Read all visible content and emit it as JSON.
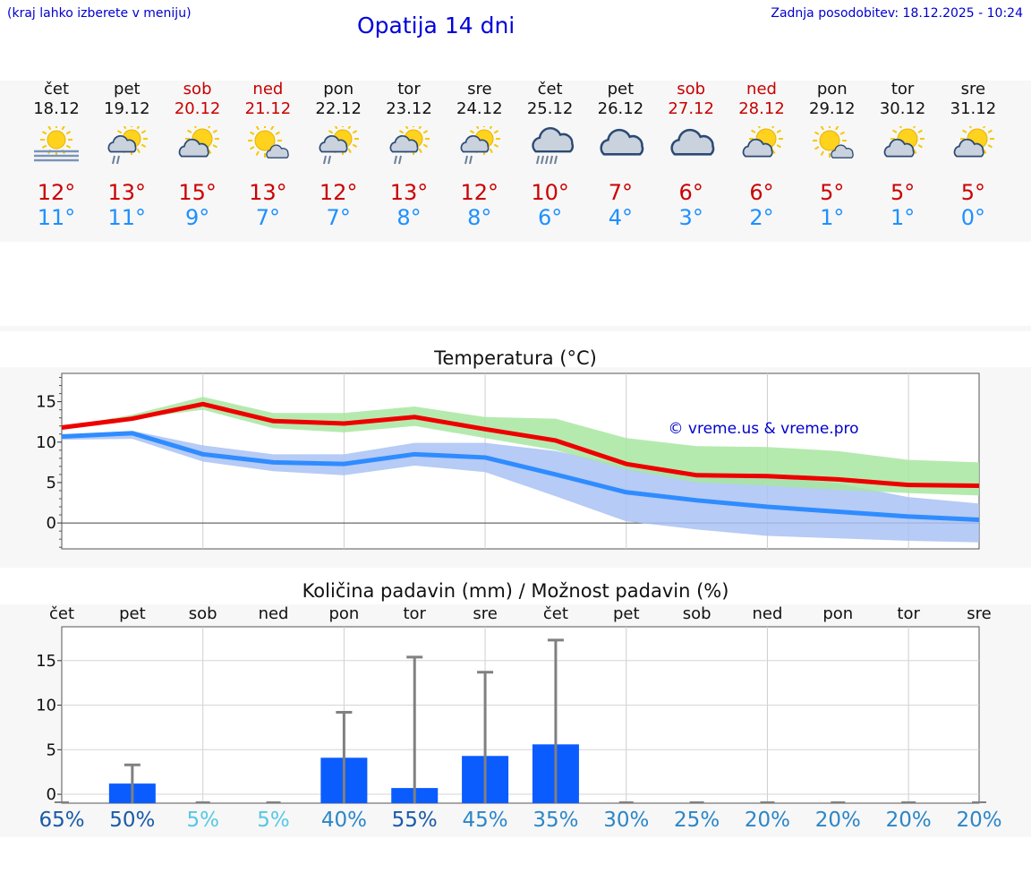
{
  "header": {
    "left_note": "(kraj lahko izberete v meniju)",
    "title": "Opatija 14 dni",
    "updated": "Zadnja posodobitev: 18.12.2025 - 10:24"
  },
  "colors": {
    "max": "#ee0000",
    "min": "#2f8cff",
    "max_band": "#a8e6a1",
    "min_band": "#a9c2f3",
    "bar": "#0a5cff",
    "weekday_text": "#111111",
    "weekend_text": "#c80000"
  },
  "days": [
    {
      "name": "čet",
      "date": "18.12",
      "weekend": false,
      "icon": "sun-fog-icon",
      "max": "12°",
      "min": "11°"
    },
    {
      "name": "pet",
      "date": "19.12",
      "weekend": false,
      "icon": "sun-cloud-rain-icon",
      "max": "13°",
      "min": "11°"
    },
    {
      "name": "sob",
      "date": "20.12",
      "weekend": true,
      "icon": "sun-cloud-icon",
      "max": "15°",
      "min": "9°"
    },
    {
      "name": "ned",
      "date": "21.12",
      "weekend": true,
      "icon": "sun-small-cloud-icon",
      "max": "13°",
      "min": "7°"
    },
    {
      "name": "pon",
      "date": "22.12",
      "weekend": false,
      "icon": "sun-cloud-rain-icon",
      "max": "12°",
      "min": "7°"
    },
    {
      "name": "tor",
      "date": "23.12",
      "weekend": false,
      "icon": "sun-cloud-rain-icon",
      "max": "13°",
      "min": "8°"
    },
    {
      "name": "sre",
      "date": "24.12",
      "weekend": false,
      "icon": "sun-cloud-rain-icon",
      "max": "12°",
      "min": "8°"
    },
    {
      "name": "čet",
      "date": "25.12",
      "weekend": false,
      "icon": "cloud-heavy-rain-icon",
      "max": "10°",
      "min": "6°"
    },
    {
      "name": "pet",
      "date": "26.12",
      "weekend": false,
      "icon": "cloud-icon",
      "max": "7°",
      "min": "4°"
    },
    {
      "name": "sob",
      "date": "27.12",
      "weekend": true,
      "icon": "cloud-icon",
      "max": "6°",
      "min": "3°"
    },
    {
      "name": "ned",
      "date": "28.12",
      "weekend": true,
      "icon": "sun-cloud-icon",
      "max": "6°",
      "min": "2°"
    },
    {
      "name": "pon",
      "date": "29.12",
      "weekend": false,
      "icon": "sun-small-cloud-icon",
      "max": "5°",
      "min": "1°"
    },
    {
      "name": "tor",
      "date": "30.12",
      "weekend": false,
      "icon": "sun-cloud-icon",
      "max": "5°",
      "min": "1°"
    },
    {
      "name": "sre",
      "date": "31.12",
      "weekend": false,
      "icon": "sun-cloud-icon",
      "max": "5°",
      "min": "0°"
    }
  ],
  "chart_data": [
    {
      "type": "line",
      "title": "Temperatura (°C)",
      "watermark": "© vreme.us & vreme.pro",
      "x": [
        0,
        1,
        2,
        3,
        4,
        5,
        6,
        7,
        8,
        9,
        10,
        11,
        12,
        13
      ],
      "ylim": [
        -3.2,
        18.5
      ],
      "yticks": [
        "0",
        "5",
        "10",
        "15"
      ],
      "ytick_values": [
        0,
        5,
        10,
        15
      ],
      "series": [
        {
          "name": "max",
          "values": [
            11.8,
            12.9,
            14.7,
            12.6,
            12.3,
            13.1,
            11.6,
            10.2,
            7.3,
            5.9,
            5.8,
            5.4,
            4.7,
            4.6
          ],
          "band_low": [
            11.8,
            12.9,
            14.0,
            11.7,
            11.2,
            12.0,
            10.5,
            9.0,
            6.6,
            5.0,
            4.6,
            4.1,
            3.7,
            3.4
          ],
          "band_high": [
            11.8,
            13.4,
            15.6,
            13.6,
            13.6,
            14.4,
            13.1,
            12.9,
            10.5,
            9.5,
            9.4,
            8.9,
            7.8,
            7.5
          ]
        },
        {
          "name": "min",
          "values": [
            10.7,
            11.1,
            8.5,
            7.5,
            7.3,
            8.5,
            8.1,
            6.0,
            3.8,
            2.8,
            2.0,
            1.4,
            0.8,
            0.4
          ],
          "band_low": [
            10.3,
            10.4,
            7.6,
            6.4,
            5.9,
            7.1,
            6.3,
            3.3,
            0.2,
            -0.8,
            -1.6,
            -1.9,
            -2.2,
            -2.4
          ],
          "band_high": [
            10.9,
            11.4,
            9.6,
            8.5,
            8.5,
            9.9,
            9.9,
            8.9,
            7.1,
            6.3,
            5.8,
            4.9,
            3.2,
            2.4
          ]
        }
      ]
    },
    {
      "type": "bar",
      "title": "Količina padavin (mm) / Možnost padavin (%)",
      "categories": [
        "čet",
        "pet",
        "sob",
        "ned",
        "pon",
        "tor",
        "sre",
        "čet",
        "pet",
        "sob",
        "ned",
        "pon",
        "tor",
        "sre"
      ],
      "values": [
        0,
        1.2,
        0,
        0,
        4.1,
        0.7,
        4.3,
        5.6,
        0,
        0,
        0,
        0,
        0,
        0
      ],
      "max_values": [
        0,
        3.3,
        0,
        0,
        9.2,
        15.4,
        13.7,
        17.3,
        0,
        0,
        0,
        0,
        0,
        0
      ],
      "ylim": [
        -1,
        18.8
      ],
      "yticks": [
        "0",
        "5",
        "10",
        "15"
      ],
      "ytick_values": [
        0,
        5,
        10,
        15
      ],
      "probabilities": [
        "65%",
        "50%",
        "5%",
        "5%",
        "40%",
        "55%",
        "45%",
        "35%",
        "30%",
        "25%",
        "20%",
        "20%",
        "20%",
        "20%"
      ],
      "probability_colors": [
        "#1a5aa8",
        "#1a5aa8",
        "#55c8e6",
        "#55c8e6",
        "#2b86c8",
        "#1a5aa8",
        "#2b86c8",
        "#2b86c8",
        "#2b86c8",
        "#2b86c8",
        "#2b86c8",
        "#2b86c8",
        "#2b86c8",
        "#2b86c8"
      ]
    }
  ]
}
